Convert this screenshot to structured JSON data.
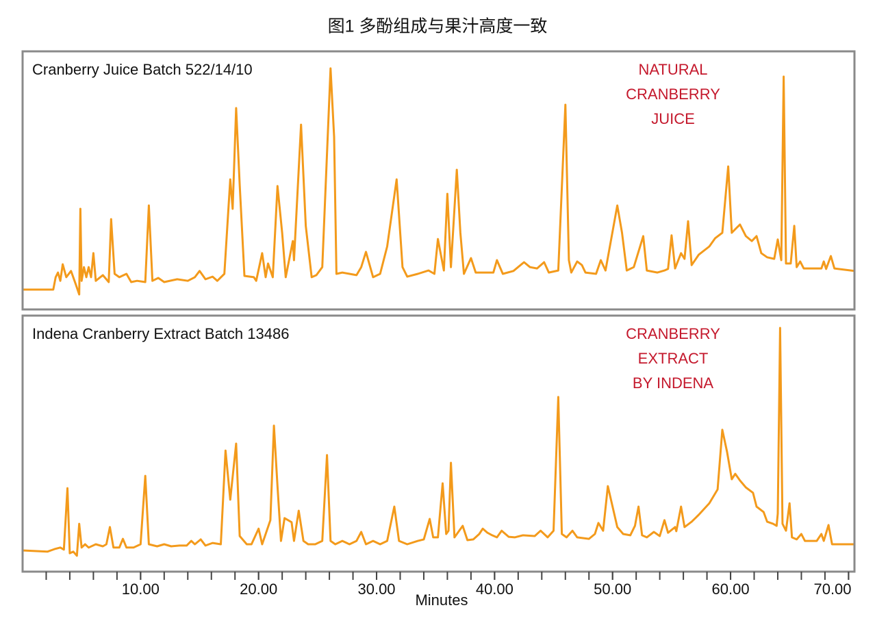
{
  "title": "图1  多酚组成与果汁高度一致",
  "chart_data": [
    {
      "type": "line",
      "title": "Cranberry Juice Batch 522/14/10",
      "annotation": [
        "NATURAL",
        "CRANBERRY",
        "JUICE"
      ],
      "color": "#f39a1b",
      "xlim": [
        0,
        70.5
      ],
      "ylim": [
        0,
        100
      ],
      "x": [
        0.0,
        2.6,
        2.8,
        3.0,
        3.2,
        3.4,
        3.7,
        4.1,
        4.5,
        4.8,
        4.9,
        5.0,
        5.2,
        5.4,
        5.6,
        5.8,
        6.0,
        6.2,
        6.8,
        7.3,
        7.5,
        7.8,
        8.2,
        8.8,
        9.2,
        9.7,
        10.4,
        10.7,
        11.0,
        11.5,
        12.0,
        13.1,
        14.0,
        14.6,
        15.0,
        15.5,
        16.1,
        16.5,
        17.1,
        17.6,
        17.8,
        18.1,
        18.4,
        18.8,
        19.6,
        19.8,
        20.3,
        20.6,
        20.8,
        21.2,
        21.6,
        22.0,
        22.3,
        22.9,
        23.0,
        23.6,
        24.0,
        24.5,
        24.9,
        25.4,
        26.1,
        26.4,
        26.6,
        27.1,
        27.7,
        28.3,
        28.7,
        29.1,
        29.7,
        30.3,
        30.9,
        31.7,
        32.2,
        32.6,
        33.5,
        34.4,
        34.9,
        35.2,
        35.7,
        36.0,
        36.3,
        36.8,
        37.1,
        37.4,
        38.0,
        38.4,
        39.3,
        39.9,
        40.2,
        40.7,
        41.6,
        42.5,
        43.0,
        43.6,
        44.2,
        44.6,
        45.4,
        46.0,
        46.3,
        46.5,
        47.0,
        47.4,
        47.7,
        48.6,
        49.0,
        49.4,
        50.4,
        50.8,
        51.2,
        51.8,
        52.6,
        52.9,
        53.8,
        54.4,
        54.7,
        55.0,
        55.3,
        55.8,
        56.1,
        56.4,
        56.7,
        57.3,
        58.2,
        58.7,
        59.3,
        59.8,
        60.1,
        60.5,
        60.8,
        61.3,
        61.8,
        62.2,
        62.6,
        63.1,
        63.7,
        64.0,
        64.3,
        64.5,
        64.7,
        65.1,
        65.4,
        65.6,
        65.9,
        66.2,
        66.9,
        67.7,
        67.9,
        68.1,
        68.5,
        68.8,
        70.5
      ],
      "values": [
        7.7,
        7.7,
        12.5,
        14.3,
        11.1,
        17.5,
        12.5,
        14.9,
        9.8,
        5.8,
        39.0,
        11.1,
        16.4,
        12.5,
        16.4,
        12.5,
        21.8,
        11.1,
        13.3,
        10.6,
        35.0,
        13.8,
        12.5,
        13.8,
        10.6,
        11.1,
        10.6,
        40.3,
        11.1,
        12.2,
        10.6,
        11.7,
        11.1,
        12.5,
        14.9,
        11.7,
        12.7,
        11.1,
        13.8,
        50.4,
        39.0,
        78.0,
        48.3,
        13.0,
        12.5,
        11.1,
        21.8,
        12.5,
        17.8,
        12.5,
        47.8,
        29.7,
        12.5,
        26.5,
        19.1,
        71.6,
        32.4,
        12.5,
        13.3,
        16.4,
        93.4,
        66.9,
        13.8,
        14.3,
        13.8,
        13.3,
        16.4,
        22.3,
        12.5,
        13.8,
        24.4,
        50.4,
        16.4,
        12.7,
        13.8,
        15.1,
        13.8,
        27.3,
        15.1,
        44.8,
        16.4,
        54.1,
        29.7,
        13.8,
        19.9,
        14.3,
        14.3,
        14.3,
        19.1,
        13.8,
        14.9,
        18.3,
        16.4,
        15.9,
        18.3,
        14.3,
        15.1,
        79.3,
        19.1,
        14.3,
        18.6,
        17.2,
        14.3,
        13.8,
        19.1,
        15.1,
        40.3,
        29.7,
        15.1,
        16.4,
        28.4,
        15.1,
        14.3,
        15.1,
        15.7,
        28.7,
        15.9,
        21.8,
        19.6,
        34.2,
        17.2,
        21.2,
        24.4,
        27.6,
        29.7,
        55.4,
        29.7,
        31.6,
        32.9,
        28.4,
        26.5,
        28.4,
        21.8,
        20.2,
        19.6,
        27.1,
        19.1,
        90.2,
        17.8,
        17.8,
        32.4,
        16.4,
        18.6,
        15.9,
        15.9,
        15.9,
        18.6,
        15.7,
        20.7,
        15.9,
        14.9
      ]
    },
    {
      "type": "line",
      "title": "Indena Cranberry Extract Batch 13486",
      "annotation": [
        "CRANBERRY",
        "EXTRACT",
        "BY INDENA"
      ],
      "color": "#f39a1b",
      "xlim": [
        0,
        70.5
      ],
      "ylim": [
        0,
        100
      ],
      "xlabel": "Minutes",
      "xticks": [
        {
          "value": 10,
          "label": "10.00"
        },
        {
          "value": 20,
          "label": "20.00"
        },
        {
          "value": 30,
          "label": "30.00"
        },
        {
          "value": 40,
          "label": "40.00"
        },
        {
          "value": 50,
          "label": "50.00"
        },
        {
          "value": 60,
          "label": "60.00"
        },
        {
          "value": 70,
          "label": "70.00"
        }
      ],
      "xminorticks": [
        2,
        4,
        6,
        8,
        10,
        12,
        14,
        16,
        18,
        20,
        22,
        24,
        26,
        28,
        30,
        32,
        34,
        36,
        38,
        40,
        42,
        44,
        46,
        48,
        50,
        52,
        54,
        56,
        58,
        60,
        62,
        64,
        66,
        68,
        70
      ],
      "x": [
        0.0,
        2.1,
        2.7,
        3.2,
        3.5,
        3.8,
        4.0,
        4.3,
        4.6,
        4.8,
        5.0,
        5.3,
        5.6,
        6.2,
        6.8,
        7.1,
        7.4,
        7.7,
        8.2,
        8.5,
        8.8,
        9.4,
        10.0,
        10.4,
        10.7,
        11.4,
        12.0,
        12.6,
        13.3,
        13.9,
        14.3,
        14.6,
        15.1,
        15.5,
        16.1,
        16.8,
        17.2,
        17.6,
        18.1,
        18.4,
        19.0,
        19.4,
        20.0,
        20.3,
        21.0,
        21.3,
        21.6,
        21.9,
        22.2,
        22.8,
        23.0,
        23.4,
        23.8,
        24.2,
        24.8,
        25.4,
        25.8,
        26.1,
        26.5,
        27.1,
        27.7,
        28.3,
        28.7,
        29.1,
        29.7,
        30.3,
        30.9,
        31.5,
        31.9,
        32.6,
        33.5,
        34.0,
        34.5,
        34.8,
        35.2,
        35.6,
        35.9,
        36.1,
        36.3,
        36.6,
        37.0,
        37.3,
        37.7,
        38.2,
        38.7,
        39.0,
        39.4,
        39.8,
        40.2,
        40.6,
        41.2,
        41.7,
        42.4,
        43.4,
        43.9,
        44.5,
        45.0,
        45.4,
        45.7,
        46.1,
        46.6,
        47.0,
        48.0,
        48.5,
        48.8,
        49.2,
        49.6,
        50.0,
        50.4,
        50.9,
        51.5,
        51.9,
        52.2,
        52.5,
        52.9,
        53.5,
        54.0,
        54.4,
        54.7,
        55.3,
        55.4,
        55.8,
        56.1,
        56.7,
        57.3,
        58.2,
        58.9,
        59.3,
        59.7,
        60.1,
        60.4,
        60.8,
        61.3,
        61.9,
        62.2,
        62.8,
        63.1,
        63.6,
        63.9,
        64.0,
        64.2,
        64.4,
        64.7,
        65.0,
        65.2,
        65.6,
        66.0,
        66.3,
        66.9,
        67.3,
        67.7,
        67.9,
        68.3,
        68.6,
        70.5
      ],
      "values": [
        8.3,
        7.8,
        8.8,
        9.4,
        8.6,
        32.6,
        7.2,
        7.8,
        6.2,
        18.7,
        9.4,
        10.7,
        9.4,
        10.7,
        9.9,
        10.7,
        17.4,
        9.4,
        9.4,
        12.8,
        9.4,
        9.4,
        10.7,
        37.4,
        10.7,
        9.9,
        10.7,
        9.9,
        10.2,
        10.2,
        12.0,
        10.7,
        12.6,
        10.2,
        11.2,
        10.7,
        47.3,
        28.1,
        50.0,
        13.9,
        10.7,
        10.7,
        16.8,
        10.7,
        20.1,
        57.0,
        33.4,
        12.0,
        20.9,
        19.3,
        12.0,
        23.8,
        12.0,
        10.7,
        10.7,
        12.0,
        45.5,
        12.0,
        10.7,
        12.0,
        10.7,
        12.0,
        15.5,
        10.7,
        12.0,
        10.7,
        12.0,
        25.4,
        12.0,
        10.7,
        12.0,
        12.6,
        20.6,
        13.4,
        13.4,
        34.5,
        14.7,
        16.0,
        42.5,
        13.4,
        16.0,
        17.9,
        12.3,
        12.6,
        14.7,
        16.8,
        15.2,
        14.2,
        13.4,
        16.0,
        13.6,
        13.4,
        14.2,
        13.9,
        16.0,
        13.4,
        16.0,
        68.2,
        14.7,
        13.4,
        16.0,
        13.4,
        12.8,
        14.7,
        19.0,
        16.0,
        33.4,
        25.4,
        17.4,
        14.7,
        14.2,
        17.9,
        25.4,
        14.2,
        13.4,
        15.5,
        13.9,
        20.1,
        15.2,
        17.4,
        15.8,
        25.4,
        17.4,
        19.5,
        22.2,
        26.7,
        32.1,
        55.4,
        46.8,
        36.1,
        38.2,
        35.6,
        32.9,
        30.8,
        25.4,
        23.3,
        19.5,
        18.7,
        17.9,
        22.7,
        95.2,
        18.7,
        16.0,
        26.7,
        13.4,
        12.6,
        14.7,
        12.0,
        12.0,
        12.0,
        14.7,
        12.0,
        18.2,
        10.7,
        10.7
      ]
    }
  ]
}
